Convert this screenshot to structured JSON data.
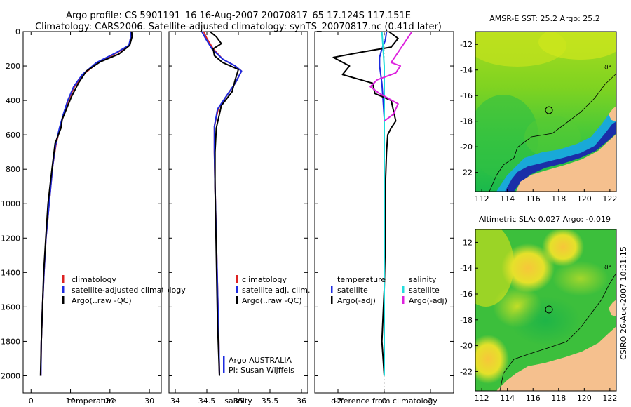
{
  "title_line1": "Argo profile: CS 5901191_16 16-Aug-2007 20070817_65 17.124S 117.151E",
  "title_line2": "Climatology: CARS2006. Satellite-adjusted climatology: synTS_20070817.nc (0.41d later)",
  "side_label": "CSIRO 26-Aug-2007 10:31:15",
  "colors": {
    "climatology": "#dd2222",
    "satellite": "#1c2be0",
    "argo": "#000000",
    "sal_satellite": "#22dddd",
    "sal_argo": "#dd22dd",
    "land": "#f5c08e"
  },
  "chart_data": [
    {
      "type": "line",
      "id": "temperature",
      "xlabel": "temperature",
      "ylabel": "",
      "xlim": [
        -2,
        33
      ],
      "ylim": [
        2100,
        0
      ],
      "xticks": [
        0,
        10,
        20,
        30
      ],
      "yticks": [
        0,
        200,
        400,
        600,
        800,
        1000,
        1200,
        1400,
        1600,
        1800,
        2000
      ],
      "legend": [
        "climatology",
        "satellite-adjusted climatology",
        "Argo(..raw -QC)"
      ],
      "series": [
        {
          "name": "climatology",
          "color": "#dd2222",
          "x": [
            25.3,
            25.2,
            24.9,
            22,
            17,
            13.2,
            11,
            9.4,
            8.3,
            7.3,
            6.3,
            5.5,
            5,
            4.6,
            4.2,
            3.8,
            3.3,
            2.9,
            2.6,
            2.5
          ],
          "y": [
            0,
            40,
            80,
            120,
            180,
            250,
            320,
            400,
            480,
            560,
            660,
            780,
            900,
            1000,
            1100,
            1200,
            1400,
            1600,
            1800,
            2000
          ]
        },
        {
          "name": "satellite-adjusted climatology",
          "color": "#1c2be0",
          "x": [
            25.3,
            25.2,
            24.8,
            21.8,
            16.6,
            13,
            10.8,
            9.3,
            8.2,
            7.2,
            6.2,
            5.5,
            5,
            4.6,
            4.2,
            3.8,
            3.3,
            2.9,
            2.6,
            2.5
          ],
          "y": [
            0,
            40,
            80,
            120,
            180,
            250,
            320,
            400,
            480,
            560,
            660,
            780,
            900,
            1000,
            1100,
            1200,
            1400,
            1600,
            1800,
            2000
          ]
        },
        {
          "name": "Argo(..raw -QC)",
          "color": "#000000",
          "x": [
            25.5,
            25.6,
            25,
            22.3,
            17.6,
            14,
            12,
            10.2,
            8.8,
            7.9,
            7.6,
            6.1,
            5.4,
            4.9,
            4.3,
            3.8,
            3.2,
            2.9,
            2.6,
            2.4
          ],
          "y": [
            0,
            30,
            80,
            130,
            175,
            230,
            300,
            380,
            460,
            510,
            560,
            650,
            780,
            880,
            1000,
            1180,
            1400,
            1600,
            1800,
            2000
          ]
        }
      ]
    },
    {
      "type": "line",
      "id": "salinity",
      "xlabel": "salinity",
      "ylabel": "",
      "xlim": [
        33.9,
        36.1
      ],
      "ylim": [
        2100,
        0
      ],
      "xticks": [
        34,
        34.5,
        35,
        35.5,
        36
      ],
      "yticks": [
        0,
        200,
        400,
        600,
        800,
        1000,
        1200,
        1400,
        1600,
        1800,
        2000
      ],
      "legend": [
        "climatology",
        "satellite adj. clim.",
        "Argo(..raw -QC)"
      ],
      "annotation": [
        "Argo AUSTRALIA",
        "PI: Susan Wijffels"
      ],
      "series": [
        {
          "name": "climatology",
          "color": "#dd2222",
          "x": [
            34.45,
            34.5,
            34.6,
            34.75,
            34.95,
            35.05,
            34.95,
            34.8,
            34.68,
            34.62,
            34.62,
            34.63,
            34.65,
            34.67,
            34.69,
            34.7
          ],
          "y": [
            0,
            40,
            100,
            160,
            200,
            230,
            300,
            380,
            450,
            550,
            700,
            900,
            1200,
            1500,
            1800,
            2000
          ]
        },
        {
          "name": "satellite adj. clim.",
          "color": "#1c2be0",
          "x": [
            34.42,
            34.48,
            34.58,
            34.75,
            34.95,
            35.05,
            34.95,
            34.8,
            34.67,
            34.62,
            34.62,
            34.63,
            34.65,
            34.67,
            34.69,
            34.7
          ],
          "y": [
            0,
            40,
            100,
            160,
            200,
            230,
            300,
            380,
            450,
            550,
            700,
            900,
            1200,
            1500,
            1800,
            2000
          ]
        },
        {
          "name": "Argo(..raw -QC)",
          "color": "#000000",
          "x": [
            34.55,
            34.65,
            34.73,
            34.6,
            34.62,
            34.75,
            35,
            34.95,
            34.9,
            34.73,
            34.7,
            34.65,
            34.63,
            34.63,
            34.65,
            34.67,
            34.7
          ],
          "y": [
            0,
            30,
            70,
            100,
            140,
            180,
            220,
            280,
            350,
            430,
            480,
            560,
            700,
            900,
            1300,
            1700,
            2000
          ]
        }
      ]
    },
    {
      "type": "line",
      "id": "difference",
      "xlabel": "difference from climatology",
      "ylabel": "",
      "xlim": [
        -3,
        3
      ],
      "ylim": [
        2100,
        0
      ],
      "xticks": [
        -2,
        0,
        2
      ],
      "yticks": [
        0,
        200,
        400,
        600,
        800,
        1000,
        1200,
        1400,
        1600,
        1800,
        2000
      ],
      "legend": [
        "temperature",
        "satellite",
        "Argo(-adj)",
        "salinity",
        "satellite",
        "Argo(-adj)"
      ],
      "series": [
        {
          "name": "temperature satellite",
          "color": "#1c2be0",
          "x": [
            0.1,
            0.05,
            -0.1,
            -0.2,
            -0.2,
            -0.1,
            -0.05,
            0,
            0,
            0,
            0,
            0,
            0,
            0
          ],
          "y": [
            0,
            50,
            100,
            150,
            200,
            300,
            400,
            500,
            700,
            900,
            1200,
            1500,
            1800,
            2000
          ]
        },
        {
          "name": "temperature Argo(-adj)",
          "color": "#000000",
          "x": [
            0.2,
            0.6,
            0.3,
            -1,
            -2.2,
            -1.5,
            -1.8,
            -0.5,
            -0.4,
            0.3,
            0.4,
            0.5,
            0.3,
            0.15,
            0.1,
            0.05,
            0.05,
            0,
            -0.1,
            -0.05,
            0
          ],
          "y": [
            0,
            40,
            90,
            120,
            150,
            200,
            250,
            300,
            360,
            400,
            460,
            520,
            560,
            600,
            700,
            900,
            1200,
            1500,
            1800,
            1900,
            2000
          ]
        },
        {
          "name": "salinity satellite",
          "color": "#22dddd",
          "x": [
            -0.1,
            -0.05,
            0,
            0,
            0,
            0,
            0,
            0,
            0,
            0
          ],
          "y": [
            0,
            100,
            200,
            400,
            600,
            800,
            1000,
            1400,
            1800,
            2000
          ]
        },
        {
          "name": "salinity Argo(-adj)",
          "color": "#dd22dd",
          "x": [
            1.2,
            0.9,
            0.7,
            0.5,
            0.3,
            0.7,
            0.5,
            -0.3,
            -0.6,
            -0.2,
            0.6,
            0.4,
            0
          ],
          "y": [
            0,
            60,
            100,
            140,
            180,
            200,
            240,
            280,
            320,
            360,
            420,
            480,
            520
          ]
        }
      ]
    },
    {
      "type": "heatmap",
      "id": "sst_map",
      "title": "AMSR-E SST: 25.2 Argo: 25.2",
      "xlim": [
        111.5,
        122.5
      ],
      "ylim": [
        -23.5,
        -11
      ],
      "xticks": [
        112,
        114,
        116,
        118,
        120,
        122
      ],
      "yticks": [
        -12,
        -14,
        -16,
        -18,
        -20,
        -22
      ],
      "marker": {
        "lon": 117.151,
        "lat": -17.124
      }
    },
    {
      "type": "heatmap",
      "id": "sla_map",
      "title": "Altimetric SLA: 0.027 Argo: -0.019",
      "xlim": [
        111.5,
        122.5
      ],
      "ylim": [
        -23.5,
        -11
      ],
      "xticks": [
        112,
        114,
        116,
        118,
        120,
        122
      ],
      "yticks": [
        -12,
        -14,
        -16,
        -18,
        -20,
        -22
      ],
      "marker": {
        "lon": 117.151,
        "lat": -17.124
      }
    }
  ]
}
